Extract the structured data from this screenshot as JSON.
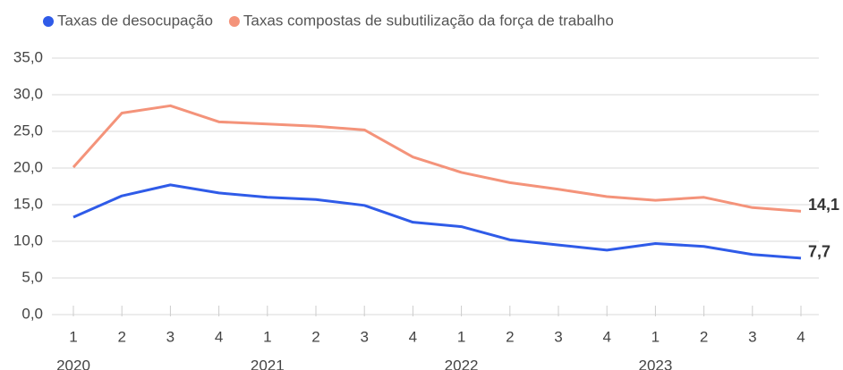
{
  "chart_data": {
    "type": "line",
    "categories": [
      "1",
      "2",
      "3",
      "4",
      "1",
      "2",
      "3",
      "4",
      "1",
      "2",
      "3",
      "4",
      "1",
      "2",
      "3",
      "4"
    ],
    "year_labels": [
      "2020",
      "2021",
      "2022",
      "2023"
    ],
    "series": [
      {
        "name": "Taxas de desocupação",
        "color": "#2f5be8",
        "values": [
          13.3,
          16.2,
          17.7,
          16.6,
          16.0,
          15.7,
          14.9,
          12.6,
          12.0,
          10.2,
          9.5,
          8.8,
          9.7,
          9.3,
          8.2,
          7.7
        ],
        "value_labels": [
          null,
          null,
          null,
          null,
          null,
          null,
          null,
          null,
          null,
          null,
          null,
          null,
          null,
          null,
          null,
          "7,7"
        ]
      },
      {
        "name": "Taxas compostas de subutilização da força de trabalho",
        "color": "#f4937a",
        "values": [
          20.1,
          27.5,
          28.5,
          26.3,
          26.0,
          25.7,
          25.2,
          21.5,
          19.4,
          18.0,
          17.1,
          16.1,
          15.6,
          16.0,
          14.6,
          14.1
        ],
        "value_labels": [
          null,
          null,
          null,
          null,
          null,
          null,
          null,
          null,
          null,
          null,
          null,
          null,
          null,
          null,
          null,
          "14,1"
        ]
      }
    ],
    "ylim": [
      0,
      35
    ],
    "yticks": [
      {
        "value": 0,
        "label": "0,0"
      },
      {
        "value": 5,
        "label": "5,0"
      },
      {
        "value": 10,
        "label": "10,0"
      },
      {
        "value": 15,
        "label": "15,0"
      },
      {
        "value": 20,
        "label": "20,0"
      },
      {
        "value": 25,
        "label": "25,0"
      },
      {
        "value": 30,
        "label": "30,0"
      },
      {
        "value": 35,
        "label": "35,0"
      }
    ],
    "grid": true,
    "legend": "top"
  }
}
